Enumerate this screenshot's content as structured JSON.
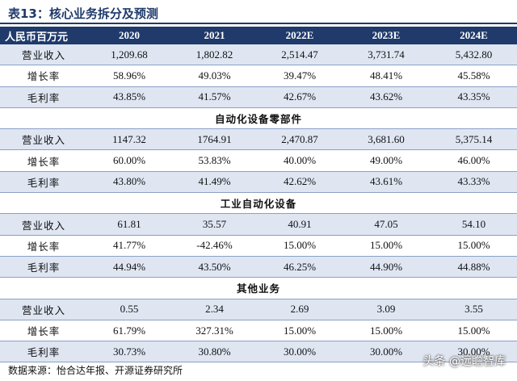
{
  "title": "表13：核心业务拆分及预测",
  "header": [
    "人民币百万元",
    "2020",
    "2021",
    "2022E",
    "2023E",
    "2024E"
  ],
  "blocks": [
    {
      "section": "",
      "rows": [
        {
          "label": "营业收入",
          "values": [
            "1,209.68",
            "1,802.82",
            "2,514.47",
            "3,731.74",
            "5,432.80"
          ]
        },
        {
          "label": "增长率",
          "values": [
            "58.96%",
            "49.03%",
            "39.47%",
            "48.41%",
            "45.58%"
          ]
        },
        {
          "label": "毛利率",
          "values": [
            "43.85%",
            "41.57%",
            "42.67%",
            "43.62%",
            "43.35%"
          ]
        }
      ]
    },
    {
      "section": "自动化设备零部件",
      "rows": [
        {
          "label": "营业收入",
          "values": [
            "1147.32",
            "1764.91",
            "2,470.87",
            "3,681.60",
            "5,375.14"
          ]
        },
        {
          "label": "增长率",
          "values": [
            "60.00%",
            "53.83%",
            "40.00%",
            "49.00%",
            "46.00%"
          ]
        },
        {
          "label": "毛利率",
          "values": [
            "43.80%",
            "41.49%",
            "42.62%",
            "43.61%",
            "43.33%"
          ]
        }
      ]
    },
    {
      "section": "工业自动化设备",
      "rows": [
        {
          "label": "营业收入",
          "values": [
            "61.81",
            "35.57",
            "40.91",
            "47.05",
            "54.10"
          ]
        },
        {
          "label": "增长率",
          "values": [
            "41.77%",
            "-42.46%",
            "15.00%",
            "15.00%",
            "15.00%"
          ]
        },
        {
          "label": "毛利率",
          "values": [
            "44.94%",
            "43.50%",
            "46.25%",
            "44.90%",
            "44.88%"
          ]
        }
      ]
    },
    {
      "section": "其他业务",
      "rows": [
        {
          "label": "营业收入",
          "values": [
            "0.55",
            "2.34",
            "2.69",
            "3.09",
            "3.55"
          ]
        },
        {
          "label": "增长率",
          "values": [
            "61.79%",
            "327.31%",
            "15.00%",
            "15.00%",
            "15.00%"
          ]
        },
        {
          "label": "毛利率",
          "values": [
            "30.73%",
            "30.80%",
            "30.00%",
            "30.00%",
            "30.00%"
          ]
        }
      ]
    }
  ],
  "source": "数据来源：怡合达年报、开源证券研究所",
  "watermark": "头条 @远瞻智库",
  "colors": {
    "header_bg": "#1f3a6b",
    "stripe": "#dfe6f2",
    "rule": "#8aa0c6"
  }
}
